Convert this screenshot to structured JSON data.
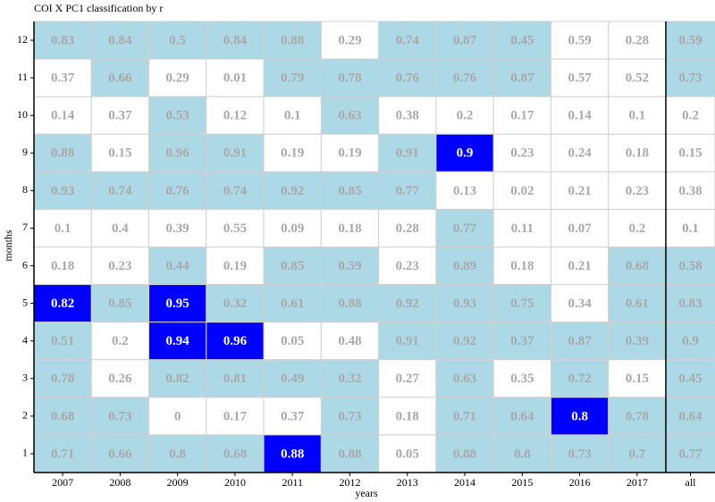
{
  "chart_data": {
    "type": "heatmap",
    "title": "COI X PC1 classification by r",
    "xlabel": "years",
    "ylabel": "months",
    "x_categories": [
      "2007",
      "2008",
      "2009",
      "2010",
      "2011",
      "2012",
      "2013",
      "2014",
      "2015",
      "2016",
      "2017",
      "all"
    ],
    "y_categories": [
      "12",
      "11",
      "10",
      "9",
      "8",
      "7",
      "6",
      "5",
      "4",
      "3",
      "2",
      "1"
    ],
    "values": [
      [
        0.83,
        0.84,
        0.5,
        0.84,
        0.88,
        0.29,
        0.74,
        0.87,
        0.45,
        0.59,
        0.28,
        0.59
      ],
      [
        0.37,
        0.66,
        0.29,
        0.01,
        0.79,
        0.78,
        0.76,
        0.76,
        0.87,
        0.57,
        0.52,
        0.73
      ],
      [
        0.14,
        0.37,
        0.53,
        0.12,
        0.1,
        0.63,
        0.38,
        0.2,
        0.17,
        0.14,
        0.1,
        0.2
      ],
      [
        0.88,
        0.15,
        0.96,
        0.91,
        0.19,
        0.19,
        0.91,
        0.9,
        0.23,
        0.24,
        0.18,
        0.15
      ],
      [
        0.93,
        0.74,
        0.76,
        0.74,
        0.92,
        0.85,
        0.77,
        0.13,
        0.02,
        0.21,
        0.23,
        0.38
      ],
      [
        0.1,
        0.4,
        0.39,
        0.55,
        0.09,
        0.18,
        0.28,
        0.77,
        0.11,
        0.07,
        0.2,
        0.1
      ],
      [
        0.18,
        0.23,
        0.44,
        0.19,
        0.85,
        0.59,
        0.23,
        0.89,
        0.18,
        0.21,
        0.68,
        0.58
      ],
      [
        0.82,
        0.85,
        0.95,
        0.32,
        0.61,
        0.88,
        0.92,
        0.93,
        0.75,
        0.34,
        0.61,
        0.83
      ],
      [
        0.51,
        0.2,
        0.94,
        0.96,
        0.05,
        0.48,
        0.91,
        0.92,
        0.37,
        0.87,
        0.39,
        0.9
      ],
      [
        0.78,
        0.26,
        0.82,
        0.81,
        0.49,
        0.32,
        0.27,
        0.63,
        0.35,
        0.72,
        0.15,
        0.45
      ],
      [
        0.68,
        0.73,
        0,
        0.17,
        0.37,
        0.73,
        0.18,
        0.71,
        0.64,
        0.8,
        0.78,
        0.64
      ],
      [
        0.71,
        0.66,
        0.8,
        0.68,
        0.88,
        0.88,
        0.05,
        0.88,
        0.8,
        0.73,
        0.7,
        0.77
      ]
    ],
    "colors": [
      [
        "#add8e6",
        "#add8e6",
        "#add8e6",
        "#add8e6",
        "#add8e6",
        "#ffffff",
        "#add8e6",
        "#add8e6",
        "#add8e6",
        "#ffffff",
        "#ffffff",
        "#add8e6"
      ],
      [
        "#ffffff",
        "#add8e6",
        "#ffffff",
        "#ffffff",
        "#add8e6",
        "#add8e6",
        "#add8e6",
        "#add8e6",
        "#add8e6",
        "#ffffff",
        "#ffffff",
        "#add8e6"
      ],
      [
        "#ffffff",
        "#ffffff",
        "#add8e6",
        "#ffffff",
        "#ffffff",
        "#add8e6",
        "#ffffff",
        "#ffffff",
        "#ffffff",
        "#ffffff",
        "#ffffff",
        "#ffffff"
      ],
      [
        "#add8e6",
        "#ffffff",
        "#add8e6",
        "#add8e6",
        "#ffffff",
        "#ffffff",
        "#add8e6",
        "#0000ff",
        "#ffffff",
        "#ffffff",
        "#ffffff",
        "#ffffff"
      ],
      [
        "#add8e6",
        "#add8e6",
        "#add8e6",
        "#add8e6",
        "#add8e6",
        "#add8e6",
        "#add8e6",
        "#ffffff",
        "#ffffff",
        "#ffffff",
        "#ffffff",
        "#ffffff"
      ],
      [
        "#ffffff",
        "#ffffff",
        "#ffffff",
        "#ffffff",
        "#ffffff",
        "#ffffff",
        "#ffffff",
        "#add8e6",
        "#ffffff",
        "#ffffff",
        "#ffffff",
        "#ffffff"
      ],
      [
        "#ffffff",
        "#ffffff",
        "#add8e6",
        "#ffffff",
        "#add8e6",
        "#add8e6",
        "#ffffff",
        "#add8e6",
        "#ffffff",
        "#ffffff",
        "#add8e6",
        "#add8e6"
      ],
      [
        "#0000ff",
        "#add8e6",
        "#0000ff",
        "#add8e6",
        "#add8e6",
        "#add8e6",
        "#add8e6",
        "#add8e6",
        "#add8e6",
        "#ffffff",
        "#add8e6",
        "#add8e6"
      ],
      [
        "#add8e6",
        "#ffffff",
        "#0000ff",
        "#0000ff",
        "#ffffff",
        "#ffffff",
        "#add8e6",
        "#add8e6",
        "#add8e6",
        "#add8e6",
        "#add8e6",
        "#add8e6"
      ],
      [
        "#add8e6",
        "#ffffff",
        "#add8e6",
        "#add8e6",
        "#add8e6",
        "#add8e6",
        "#ffffff",
        "#add8e6",
        "#ffffff",
        "#add8e6",
        "#ffffff",
        "#add8e6"
      ],
      [
        "#add8e6",
        "#add8e6",
        "#ffffff",
        "#ffffff",
        "#ffffff",
        "#add8e6",
        "#ffffff",
        "#add8e6",
        "#add8e6",
        "#0000ff",
        "#add8e6",
        "#add8e6"
      ],
      [
        "#add8e6",
        "#add8e6",
        "#add8e6",
        "#add8e6",
        "#0000ff",
        "#add8e6",
        "#ffffff",
        "#add8e6",
        "#add8e6",
        "#add8e6",
        "#add8e6",
        "#add8e6"
      ]
    ]
  }
}
